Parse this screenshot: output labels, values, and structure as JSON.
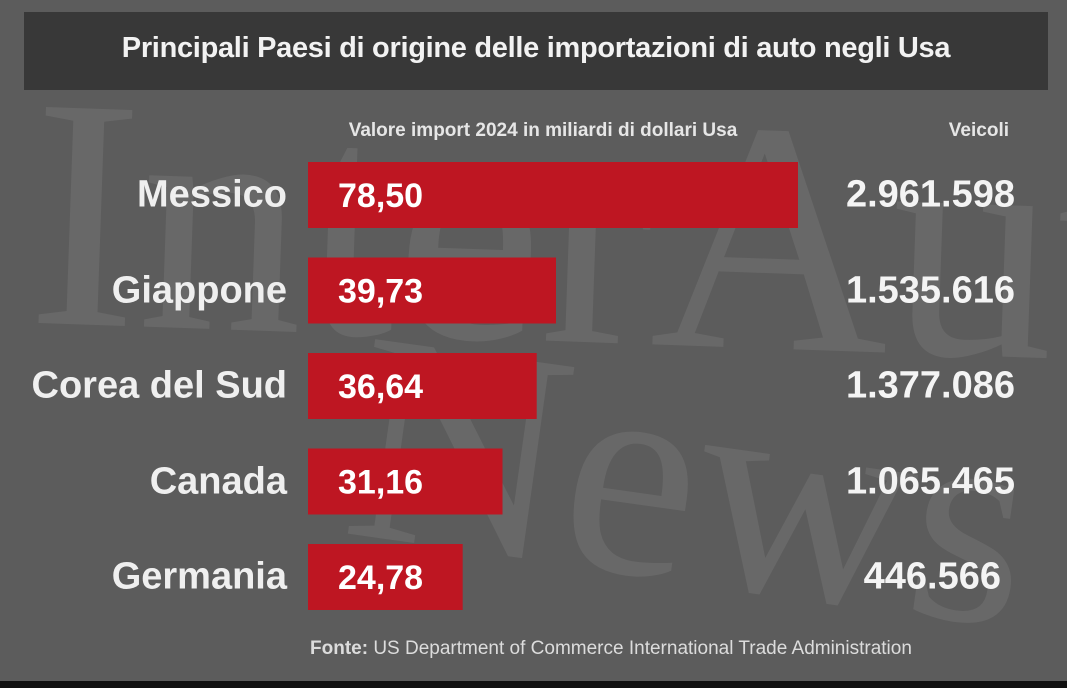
{
  "title": "Principali Paesi di origine delle importazioni di auto negli Usa",
  "headers": {
    "value": "Valore import 2024 in miliardi di dollari Usa",
    "vehicles": "Veicoli"
  },
  "watermark": {
    "line1": "InterAuto",
    "line2": "News"
  },
  "source": {
    "label": "Fonte:",
    "text": "US Department of Commerce International Trade Administration"
  },
  "colors": {
    "bar": "#be1622",
    "background": "#5c5c5c",
    "title_bar": "#383838",
    "text": "#f2f2f2"
  },
  "chart_data": {
    "type": "bar",
    "orientation": "horizontal",
    "title": "Principali Paesi di origine delle importazioni di auto negli Usa",
    "categories": [
      "Messico",
      "Giappone",
      "Corea del Sud",
      "Canada",
      "Germania"
    ],
    "series": [
      {
        "name": "Valore import 2024 in miliardi di dollari Usa",
        "values": [
          78.5,
          39.73,
          36.64,
          31.16,
          24.78
        ],
        "labels": [
          "78,50",
          "39,73",
          "36,64",
          "31,16",
          "24,78"
        ]
      },
      {
        "name": "Veicoli",
        "values": [
          2961598,
          1535616,
          1377086,
          1065465,
          446566
        ],
        "labels": [
          "2.961.598",
          "1.535.616",
          "1.377.086",
          "1.065.465",
          "446.566"
        ]
      }
    ],
    "xlim": [
      0,
      78.5
    ],
    "grid": false,
    "legend": "none"
  }
}
